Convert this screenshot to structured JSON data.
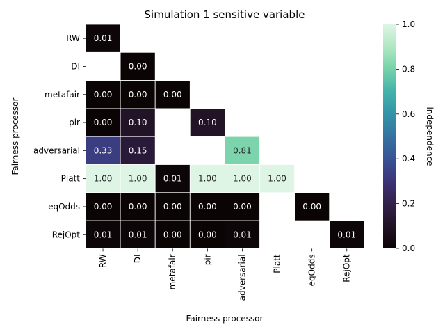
{
  "chart_data": {
    "type": "heatmap",
    "title": "Simulation 1 sensitive variable",
    "xlabel": "Fairness processor",
    "ylabel": "Fairness processor",
    "x_categories": [
      "RW",
      "DI",
      "metafair",
      "pir",
      "adversarial",
      "Platt",
      "eqOdds",
      "RejOpt"
    ],
    "y_categories": [
      "RW",
      "DI",
      "metafair",
      "pir",
      "adversarial",
      "Platt",
      "eqOdds",
      "RejOpt"
    ],
    "values": [
      [
        0.01,
        null,
        null,
        null,
        null,
        null,
        null,
        null
      ],
      [
        null,
        0.0,
        null,
        null,
        null,
        null,
        null,
        null
      ],
      [
        0.0,
        0.0,
        0.0,
        null,
        null,
        null,
        null,
        null
      ],
      [
        0.0,
        0.1,
        null,
        0.1,
        null,
        null,
        null,
        null
      ],
      [
        0.33,
        0.15,
        null,
        null,
        0.81,
        null,
        null,
        null
      ],
      [
        1.0,
        1.0,
        0.01,
        1.0,
        1.0,
        1.0,
        null,
        null
      ],
      [
        0.0,
        0.0,
        0.0,
        0.0,
        0.0,
        null,
        0.0,
        null
      ],
      [
        0.01,
        0.01,
        0.0,
        0.0,
        0.01,
        null,
        null,
        0.01
      ]
    ],
    "value_format": "0.00",
    "colormap": "mako",
    "colorbar": {
      "label": "independence",
      "range": [
        0,
        1
      ],
      "ticks": [
        "0.0",
        "0.2",
        "0.4",
        "0.6",
        "0.8",
        "1.0"
      ]
    },
    "grid": false,
    "cell_border_color": "#ffffff"
  }
}
